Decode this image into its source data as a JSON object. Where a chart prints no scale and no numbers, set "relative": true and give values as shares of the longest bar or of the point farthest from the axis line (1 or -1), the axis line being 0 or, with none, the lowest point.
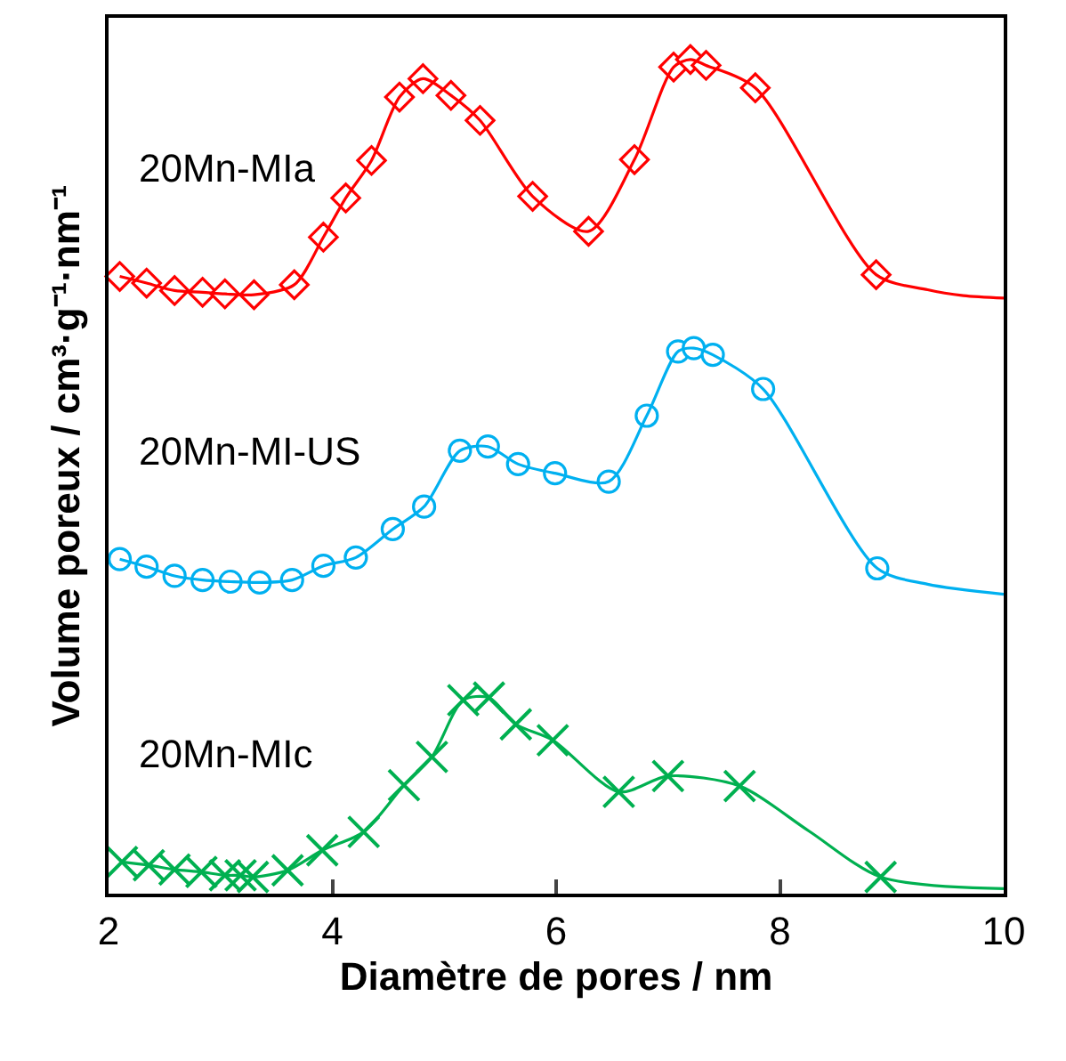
{
  "chart_data": {
    "type": "scatter",
    "relative": true,
    "xlabel": "Diamètre de pores / nm",
    "ylabel": "Volume poreux / cm³·g⁻¹·nm⁻¹",
    "xlim": [
      2,
      10
    ],
    "xticks": [
      2,
      4,
      6,
      8,
      10
    ],
    "grid": false,
    "legend": false,
    "series": [
      {
        "name": "20Mn-MIa",
        "color": "#ff0000",
        "marker": "diamond",
        "x": [
          2.1,
          2.34,
          2.59,
          2.84,
          3.04,
          3.3,
          3.66,
          3.92,
          4.12,
          4.35,
          4.6,
          4.81,
          5.06,
          5.32,
          5.79,
          6.29,
          6.7,
          7.05,
          7.2,
          7.34,
          7.78,
          8.86
        ],
        "values": [
          0.74,
          0.732,
          0.723,
          0.721,
          0.719,
          0.718,
          0.73,
          0.787,
          0.834,
          0.879,
          0.955,
          0.977,
          0.957,
          0.927,
          0.836,
          0.794,
          0.88,
          0.991,
          1.0,
          0.993,
          0.966,
          0.742
        ]
      },
      {
        "type": "line",
        "color": "#ff0000",
        "marker": "none",
        "x": [
          2.1,
          2.34,
          2.59,
          2.84,
          3.04,
          3.3,
          3.66,
          3.92,
          4.12,
          4.35,
          4.6,
          4.81,
          5.06,
          5.32,
          5.79,
          6.29,
          6.7,
          7.05,
          7.2,
          7.34,
          7.78,
          8.86,
          9.32,
          9.64,
          10.0
        ],
        "values": [
          0.74,
          0.732,
          0.723,
          0.721,
          0.719,
          0.718,
          0.73,
          0.787,
          0.834,
          0.879,
          0.955,
          0.977,
          0.957,
          0.927,
          0.836,
          0.794,
          0.88,
          0.991,
          1.0,
          0.993,
          0.966,
          0.742,
          0.724,
          0.717,
          0.714
        ]
      },
      {
        "name": "20Mn-MI-US",
        "color": "#00b0f0",
        "marker": "circle",
        "x": [
          2.1,
          2.34,
          2.59,
          2.84,
          3.09,
          3.35,
          3.64,
          3.92,
          4.21,
          4.54,
          4.82,
          5.14,
          5.39,
          5.66,
          5.99,
          6.47,
          6.81,
          7.09,
          7.23,
          7.4,
          7.85,
          8.87
        ],
        "values": [
          0.401,
          0.392,
          0.381,
          0.376,
          0.374,
          0.373,
          0.376,
          0.393,
          0.403,
          0.437,
          0.464,
          0.531,
          0.536,
          0.515,
          0.504,
          0.494,
          0.573,
          0.65,
          0.654,
          0.646,
          0.605,
          0.39
        ]
      },
      {
        "type": "line",
        "color": "#00b0f0",
        "marker": "none",
        "x": [
          2.1,
          2.34,
          2.59,
          2.84,
          3.09,
          3.35,
          3.64,
          3.92,
          4.21,
          4.54,
          4.82,
          5.14,
          5.39,
          5.66,
          5.99,
          6.47,
          6.81,
          7.09,
          7.23,
          7.4,
          7.85,
          8.87,
          9.32,
          10.0
        ],
        "values": [
          0.401,
          0.392,
          0.381,
          0.376,
          0.374,
          0.373,
          0.376,
          0.393,
          0.403,
          0.437,
          0.464,
          0.531,
          0.536,
          0.515,
          0.504,
          0.494,
          0.573,
          0.65,
          0.654,
          0.646,
          0.605,
          0.39,
          0.371,
          0.359
        ]
      },
      {
        "name": "20Mn-MIc",
        "color": "#00b050",
        "marker": "cross",
        "x": [
          2.12,
          2.36,
          2.59,
          2.83,
          3.04,
          3.18,
          3.29,
          3.6,
          3.91,
          4.28,
          4.64,
          4.89,
          5.17,
          5.4,
          5.64,
          5.97,
          6.56,
          7.0,
          7.64,
          8.9
        ],
        "values": [
          0.038,
          0.034,
          0.029,
          0.026,
          0.022,
          0.022,
          0.02,
          0.028,
          0.052,
          0.074,
          0.13,
          0.164,
          0.232,
          0.235,
          0.203,
          0.184,
          0.122,
          0.141,
          0.129,
          0.02
        ]
      },
      {
        "type": "line",
        "color": "#00b050",
        "marker": "none",
        "x": [
          2.12,
          2.36,
          2.59,
          2.83,
          3.04,
          3.18,
          3.29,
          3.6,
          3.91,
          4.28,
          4.64,
          4.89,
          5.17,
          5.4,
          5.64,
          5.97,
          6.56,
          7.0,
          7.64,
          8.26,
          8.9,
          10.0
        ],
        "values": [
          0.038,
          0.034,
          0.029,
          0.026,
          0.022,
          0.022,
          0.02,
          0.028,
          0.052,
          0.074,
          0.13,
          0.164,
          0.232,
          0.235,
          0.203,
          0.184,
          0.122,
          0.141,
          0.129,
          0.075,
          0.02,
          0.006
        ]
      }
    ]
  }
}
